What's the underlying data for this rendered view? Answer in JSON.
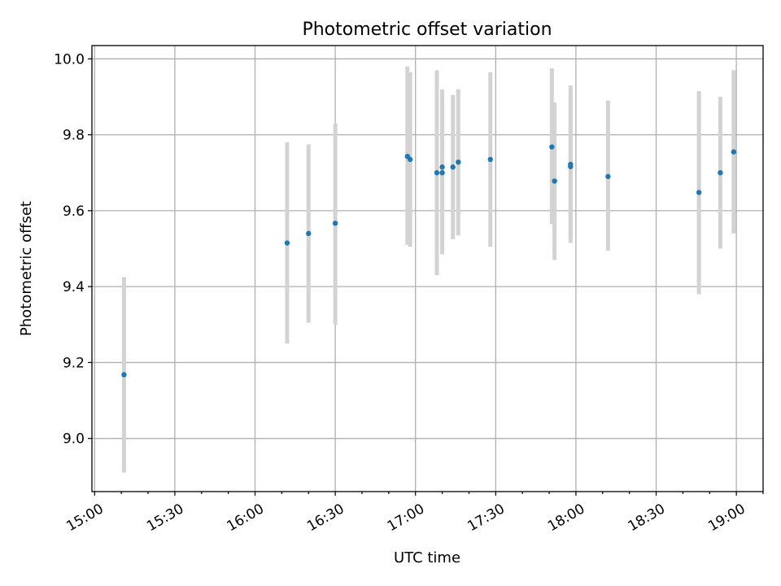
{
  "chart_data": {
    "type": "scatter",
    "title": "Photometric offset variation",
    "xlabel": "UTC time",
    "ylabel": "Photometric offset",
    "x_tick_labels": [
      "15:00",
      "15:30",
      "16:00",
      "16:30",
      "17:00",
      "17:30",
      "18:00",
      "18:30",
      "19:00"
    ],
    "xlim": [
      "14:59",
      "19:10"
    ],
    "y_ticks": [
      9.0,
      9.2,
      9.4,
      9.6,
      9.8,
      10.0
    ],
    "y_tick_labels": [
      "9.0",
      "9.2",
      "9.4",
      "9.6",
      "9.8",
      "10.0"
    ],
    "ylim": [
      8.86,
      10.035
    ],
    "grid": true,
    "marker_color": "#1f77b4",
    "errorbar_color": "#d3d3d3",
    "series": [
      {
        "points": [
          {
            "x": "15:11",
            "y": 9.168,
            "ylow": 8.91,
            "yhigh": 9.425
          },
          {
            "x": "16:12",
            "y": 9.515,
            "ylow": 9.25,
            "yhigh": 9.78
          },
          {
            "x": "16:20",
            "y": 9.54,
            "ylow": 9.305,
            "yhigh": 9.775
          },
          {
            "x": "16:30",
            "y": 9.567,
            "ylow": 9.3,
            "yhigh": 9.83
          },
          {
            "x": "16:57",
            "y": 9.743,
            "ylow": 9.51,
            "yhigh": 9.98
          },
          {
            "x": "16:58",
            "y": 9.735,
            "ylow": 9.505,
            "yhigh": 9.965
          },
          {
            "x": "17:08",
            "y": 9.7,
            "ylow": 9.43,
            "yhigh": 9.97
          },
          {
            "x": "17:10",
            "y": 9.7,
            "ylow": 9.51,
            "yhigh": 9.89
          },
          {
            "x": "17:10",
            "y": 9.715,
            "ylow": 9.485,
            "yhigh": 9.92
          },
          {
            "x": "17:14",
            "y": 9.715,
            "ylow": 9.525,
            "yhigh": 9.905
          },
          {
            "x": "17:16",
            "y": 9.728,
            "ylow": 9.535,
            "yhigh": 9.92
          },
          {
            "x": "17:28",
            "y": 9.735,
            "ylow": 9.505,
            "yhigh": 9.965
          },
          {
            "x": "17:51",
            "y": 9.768,
            "ylow": 9.565,
            "yhigh": 9.975
          },
          {
            "x": "17:52",
            "y": 9.678,
            "ylow": 9.47,
            "yhigh": 9.885
          },
          {
            "x": "17:58",
            "y": 9.722,
            "ylow": 9.515,
            "yhigh": 9.93
          },
          {
            "x": "17:58",
            "y": 9.716,
            "ylow": 9.525,
            "yhigh": 9.905
          },
          {
            "x": "18:12",
            "y": 9.69,
            "ylow": 9.495,
            "yhigh": 9.89
          },
          {
            "x": "18:46",
            "y": 9.648,
            "ylow": 9.38,
            "yhigh": 9.915
          },
          {
            "x": "18:54",
            "y": 9.7,
            "ylow": 9.5,
            "yhigh": 9.9
          },
          {
            "x": "18:59",
            "y": 9.755,
            "ylow": 9.54,
            "yhigh": 9.97
          }
        ]
      }
    ]
  }
}
